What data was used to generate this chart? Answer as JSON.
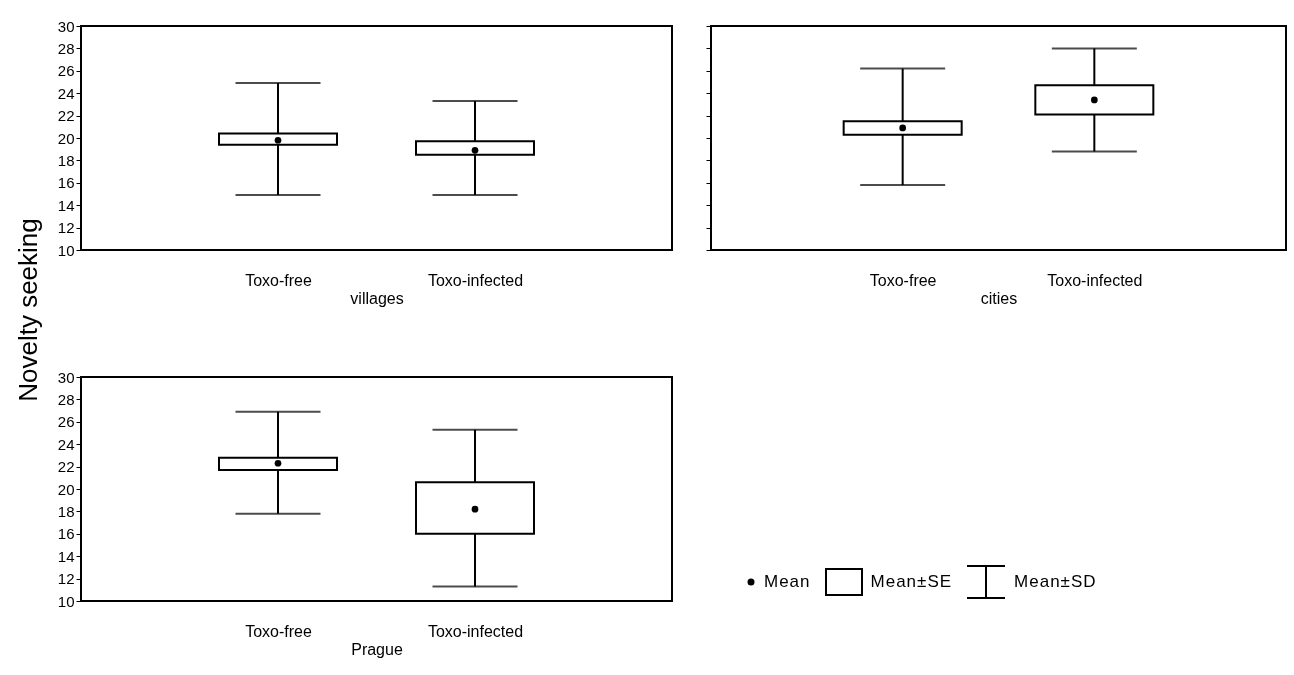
{
  "chart_data": [
    {
      "type": "box",
      "categories": [
        "Toxo-free",
        "Toxo-infected"
      ],
      "xlabel": "villages",
      "ylabel": "Novelty seeking",
      "ylim": [
        10,
        30
      ],
      "yticks": [
        10,
        12,
        14,
        16,
        18,
        20,
        22,
        24,
        26,
        28,
        30
      ],
      "boxes": [
        {
          "low": 14.9,
          "q1": 19.4,
          "q3": 20.4,
          "high": 24.9,
          "mean": 19.8
        },
        {
          "low": 14.9,
          "q1": 18.5,
          "q3": 19.7,
          "high": 23.3,
          "mean": 18.9
        }
      ]
    },
    {
      "type": "box",
      "categories": [
        "Toxo-free",
        "Toxo-infected"
      ],
      "xlabel": "cities",
      "ylim": [
        10,
        30
      ],
      "yticks": [
        10,
        12,
        14,
        16,
        18,
        20,
        22,
        24,
        26,
        28,
        30
      ],
      "tick_labels": "x",
      "boxes": [
        {
          "low": 15.8,
          "q1": 20.3,
          "q3": 21.5,
          "high": 26.2,
          "mean": 20.9
        },
        {
          "low": 18.8,
          "q1": 22.1,
          "q3": 24.7,
          "high": 28.0,
          "mean": 23.4
        }
      ]
    },
    {
      "type": "box",
      "categories": [
        "Toxo-free",
        "Toxo-infected"
      ],
      "xlabel": "Prague",
      "ylim": [
        10,
        30
      ],
      "yticks": [
        10,
        12,
        14,
        16,
        18,
        20,
        22,
        24,
        26,
        28,
        30
      ],
      "annotations": [
        "Mean",
        "Mean±SE",
        "Mean±SD"
      ],
      "boxes": [
        {
          "low": 17.8,
          "q1": 21.7,
          "q3": 22.8,
          "high": 26.9,
          "mean": 22.3
        },
        {
          "low": 11.3,
          "q1": 16.0,
          "q3": 20.6,
          "high": 25.3,
          "mean": 18.2
        }
      ]
    }
  ]
}
